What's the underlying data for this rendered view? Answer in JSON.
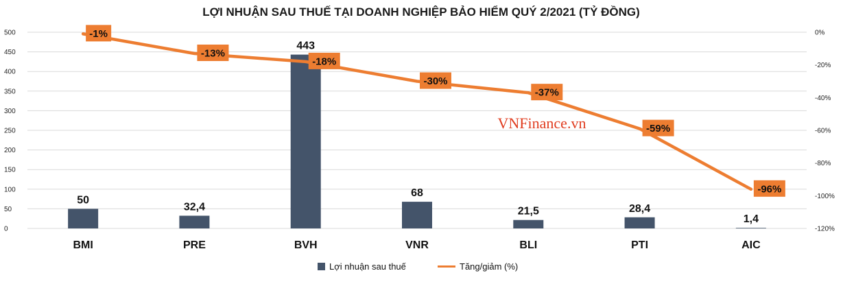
{
  "title": "LỢI NHUẬN SAU THUẾ TẠI DOANH NGHIỆP BẢO HIỂM QUÝ 2/2021 (TỶ ĐỒNG)",
  "watermark": "VNFinance.vn",
  "colors": {
    "bar": "#44546a",
    "line": "#ed7d31",
    "grid": "#d9d9d9",
    "watermark": "#e03c1f"
  },
  "chart_data": {
    "type": "bar",
    "categories": [
      "BMI",
      "PRE",
      "BVH",
      "VNR",
      "BLI",
      "PTI",
      "AIC"
    ],
    "series": [
      {
        "name": "Lợi nhuận sau thuế",
        "type": "bar",
        "axis": "left",
        "values": [
          50,
          32.4,
          443,
          68,
          21.5,
          28.4,
          1.4
        ],
        "labels": [
          "50",
          "32,4",
          "443",
          "68",
          "21,5",
          "28,4",
          "1,4"
        ]
      },
      {
        "name": "Tăng/giảm (%)",
        "type": "line",
        "axis": "right",
        "values": [
          -1,
          -13,
          -18,
          -30,
          -37,
          -59,
          -96
        ],
        "labels": [
          "-1%",
          "-13%",
          "-18%",
          "-30%",
          "-37%",
          "-59%",
          "-96%"
        ]
      }
    ],
    "y_left": {
      "ylim": [
        0,
        500
      ],
      "ticks": [
        "0",
        "50",
        "100",
        "150",
        "200",
        "250",
        "300",
        "350",
        "400",
        "450",
        "500"
      ]
    },
    "y_right": {
      "ylim": [
        -120,
        0
      ],
      "ticks": [
        "0%",
        "-20%",
        "-40%",
        "-60%",
        "-80%",
        "-100%",
        "-120%"
      ]
    },
    "grid": true,
    "legend_position": "bottom"
  }
}
